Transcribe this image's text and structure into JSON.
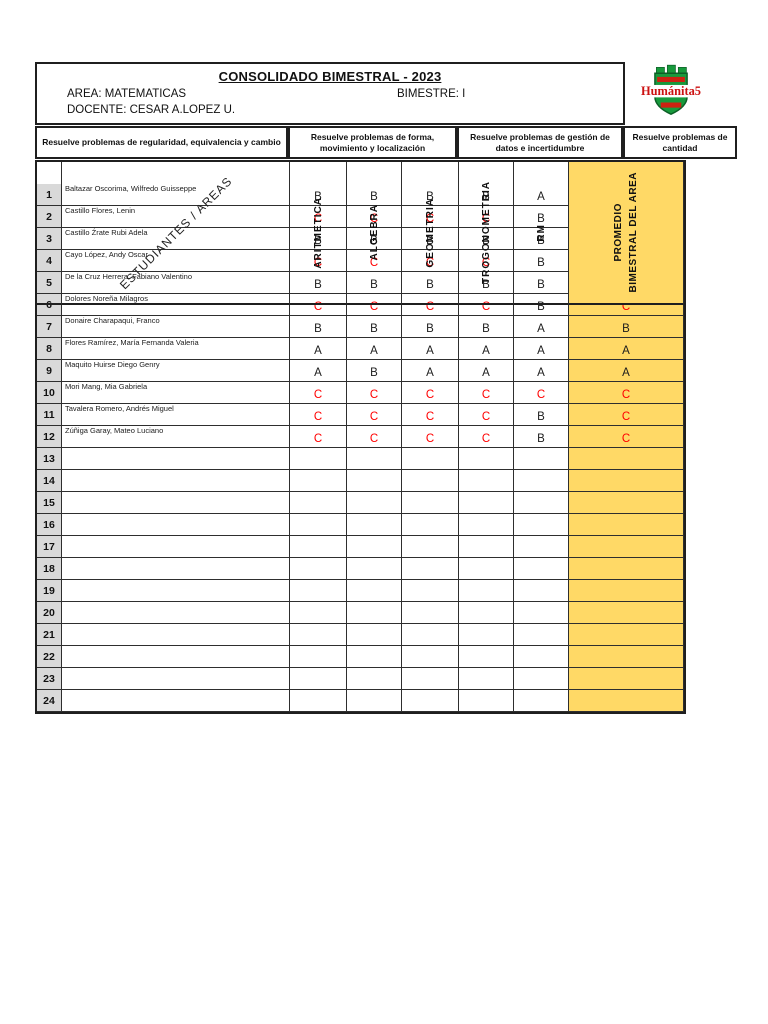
{
  "header": {
    "title": "CONSOLIDADO BIMESTRAL -  2023",
    "area": "AREA: MATEMATICAS",
    "bimestre": "BIMESTRE: I",
    "docente": "DOCENTE: CESAR A.LOPEZ U.",
    "logo_text": "Humánita5"
  },
  "competency_groups": [
    {
      "label": "Resuelve problemas de regularidad, equivalencia y cambio"
    },
    {
      "label": "Resuelve problemas de forma, movimiento y localización"
    },
    {
      "label": "Resuelve problemas de gestión de datos e incertidumbre"
    },
    {
      "label": "Resuelve problemas de cantidad"
    }
  ],
  "table": {
    "corner_header": "ESTUDIANTES / AREAS",
    "subject_columns": [
      "ARITMETICA",
      "ALGEBRA",
      "GEOMETRIA",
      "TROGONOMETRIA",
      "RM"
    ],
    "promedio_header": [
      "PROMEDIO",
      "BIMESTRAL DEL AREA"
    ],
    "total_rows": 24,
    "students": [
      {
        "n": "1",
        "name": "Baltazar Oscorima, Wilfredo Guisseppe",
        "grades": [
          "B",
          "B",
          "B",
          "B",
          "A"
        ],
        "promedio": "B"
      },
      {
        "n": "2",
        "name": "Castillo Flores, Lenin",
        "grades": [
          "C",
          "C",
          "C",
          "C",
          "B"
        ],
        "promedio": "C"
      },
      {
        "n": "3",
        "name": "Castillo Źrate Rubi Adela",
        "grades": [
          "B",
          "B",
          "B",
          "B",
          "B"
        ],
        "promedio": "B"
      },
      {
        "n": "4",
        "name": "Cayo López, Andy Oscar",
        "grades": [
          "C",
          "C",
          "C",
          "C",
          "B"
        ],
        "promedio": "C"
      },
      {
        "n": "5",
        "name": "De la Cruz Herrera, Fabiano Valentino",
        "grades": [
          "B",
          "B",
          "B",
          "B",
          "B"
        ],
        "promedio": "B"
      },
      {
        "n": "6",
        "name": "Dolores Noreña Milagros",
        "grades": [
          "C",
          "C",
          "C",
          "C",
          "B"
        ],
        "promedio": "C"
      },
      {
        "n": "7",
        "name": "Donaire Charapaqui, Franco",
        "grades": [
          "B",
          "B",
          "B",
          "B",
          "A"
        ],
        "promedio": "B"
      },
      {
        "n": "8",
        "name": "Flores Ramírez, María Fernanda Valeria",
        "grades": [
          "A",
          "A",
          "A",
          "A",
          "A"
        ],
        "promedio": "A"
      },
      {
        "n": "9",
        "name": "Maquito Huirse Diego Genry",
        "grades": [
          "A",
          "B",
          "A",
          "A",
          "A"
        ],
        "promedio": "A"
      },
      {
        "n": "10",
        "name": "Mori Mang, Mia Gabriela",
        "grades": [
          "C",
          "C",
          "C",
          "C",
          "C"
        ],
        "promedio": "C"
      },
      {
        "n": "11",
        "name": "Tavalera Romero, Andrés Miguel",
        "grades": [
          "C",
          "C",
          "C",
          "C",
          "B"
        ],
        "promedio": "C"
      },
      {
        "n": "12",
        "name": "Zúñiga Garay, Mateo Luciano",
        "grades": [
          "C",
          "C",
          "C",
          "C",
          "B"
        ],
        "promedio": "C"
      }
    ]
  },
  "colors": {
    "promedio_fill": "#FFD966",
    "row_number_fill": "#D9D9D9",
    "grade_c": "#FF0000",
    "border": "#1F1F1F",
    "logo_red": "#CC1111",
    "logo_green": "#179A3C"
  }
}
